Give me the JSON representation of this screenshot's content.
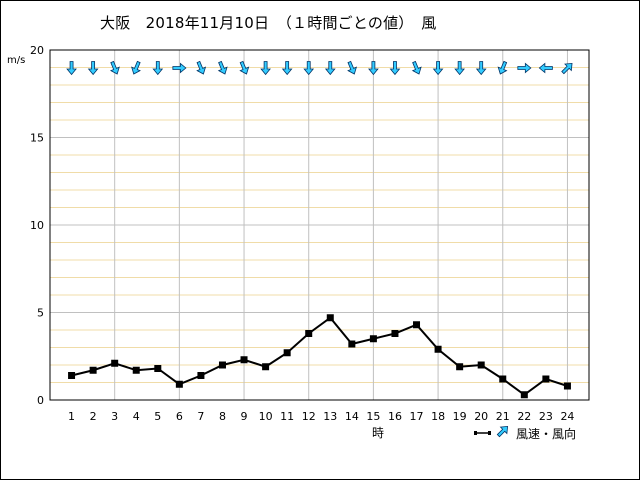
{
  "title": "大阪　2018年11月10日　（１時間ごとの値）　風",
  "unit": "m/s",
  "xlabel": "時",
  "legend_label": "風速・風向",
  "colors": {
    "grid_major": "#c0c0c0",
    "grid_minor": "#f0dca8",
    "line": "#000000",
    "arrow_fill": "#33ccff",
    "arrow_stroke": "#003366"
  },
  "chart_data": {
    "type": "line",
    "x": [
      1,
      2,
      3,
      4,
      5,
      6,
      7,
      8,
      9,
      10,
      11,
      12,
      13,
      14,
      15,
      16,
      17,
      18,
      19,
      20,
      21,
      22,
      23,
      24
    ],
    "series": [
      {
        "values": [
          1.4,
          1.7,
          2.1,
          1.7,
          1.8,
          0.9,
          1.4,
          2.0,
          2.3,
          1.9,
          2.7,
          3.8,
          4.7,
          3.2,
          3.5,
          3.8,
          4.3,
          2.9,
          1.9,
          2.0,
          1.2,
          0.3,
          1.2,
          0.8
        ]
      }
    ],
    "wind_direction_arrows": [
      "S",
      "S",
      "SSE",
      "SSW",
      "S",
      "E",
      "SSE",
      "SSE",
      "SSE",
      "S",
      "S",
      "S",
      "S",
      "SSE",
      "S",
      "S",
      "SSE",
      "S",
      "S",
      "S",
      "SSW",
      "E",
      "W",
      "NE"
    ],
    "ylim": [
      0,
      20
    ],
    "yticks": [
      0,
      5,
      10,
      15,
      20
    ],
    "xticks": [
      "1",
      "2",
      "3",
      "4",
      "5",
      "6",
      "7",
      "8",
      "9",
      "10",
      "11",
      "12",
      "13",
      "14",
      "15",
      "16",
      "17",
      "18",
      "19",
      "20",
      "21",
      "22",
      "23",
      "24"
    ],
    "grid": true
  }
}
